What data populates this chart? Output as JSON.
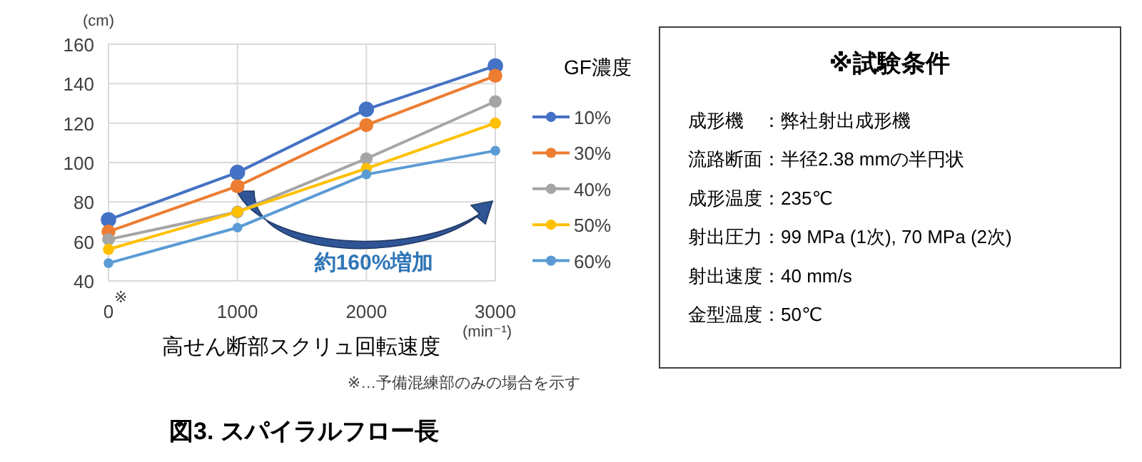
{
  "chart_data": [
    {
      "type": "line",
      "title": "図3. スパイラルフロー長",
      "xlabel": "高せん断部スクリュ回転速度",
      "ylabel": "(cm)",
      "legend_title": "GF濃度",
      "x": [
        0,
        1000,
        2000,
        3000
      ],
      "xlim": [
        0,
        3000
      ],
      "xticks": [
        0,
        1000,
        2000,
        3000
      ],
      "ylim": [
        40,
        160
      ],
      "yticks": [
        40,
        60,
        80,
        100,
        120,
        140,
        160
      ],
      "grid": true,
      "legend": "right",
      "marker": "circle",
      "line_style": "solid",
      "series": [
        {
          "name": "10%",
          "color": "#4472c4",
          "values": [
            71,
            95,
            127,
            149
          ]
        },
        {
          "name": "30%",
          "color": "#ed7d31",
          "values": [
            65,
            88,
            119,
            144
          ]
        },
        {
          "name": "40%",
          "color": "#a5a5a5",
          "values": [
            61,
            75,
            102,
            131
          ]
        },
        {
          "name": "50%",
          "color": "#ffc000",
          "values": [
            56,
            75,
            97,
            120
          ]
        },
        {
          "name": "60%",
          "color": "#5b9bd5",
          "values": [
            49,
            67,
            94,
            106
          ]
        }
      ],
      "annotations": [
        "(min⁻¹)",
        "※",
        "約160%増加",
        "※…予備混練部のみの場合を示す"
      ]
    },
    {
      "type": "other",
      "title": "※試験条件",
      "annotations": [
        "成形機　：弊社射出成形機",
        "流路断面：半径2.38 mmの半円状",
        "成形温度：235℃",
        "射出圧力：99 MPa (1次), 70 MPa (2次)",
        "射出速度：40 mm/s",
        "金型温度：50℃"
      ]
    }
  ]
}
